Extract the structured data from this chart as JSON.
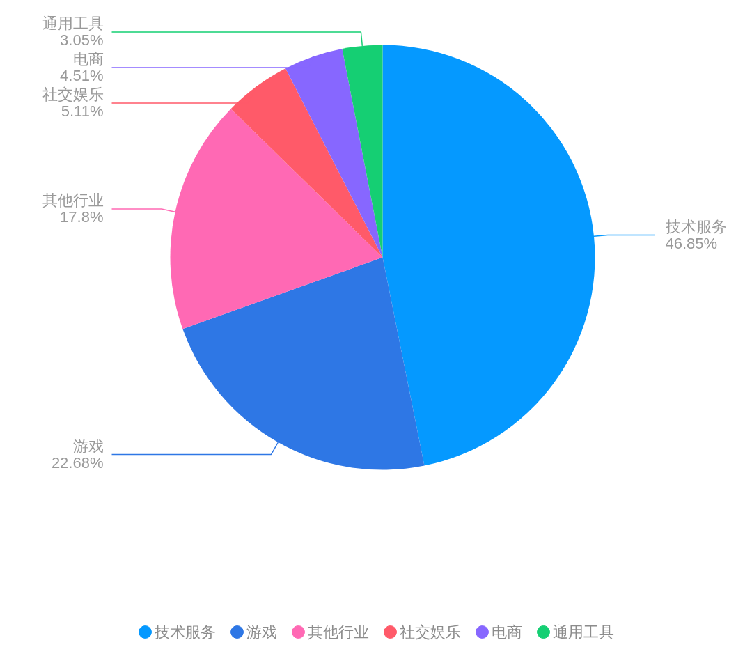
{
  "chart_data": {
    "type": "pie",
    "categories": [
      "技术服务",
      "游戏",
      "其他行业",
      "社交娱乐",
      "电商",
      "通用工具"
    ],
    "values": [
      46.85,
      22.68,
      17.8,
      5.11,
      4.51,
      3.05
    ],
    "colors": [
      "#0599ff",
      "#2e77e5",
      "#ff69b4",
      "#ff5a69",
      "#8767ff",
      "#15cf73"
    ],
    "value_labels": [
      "46.85%",
      "22.68%",
      "17.8%",
      "5.11%",
      "4.51%",
      "3.05%"
    ],
    "legend": "bottom"
  }
}
